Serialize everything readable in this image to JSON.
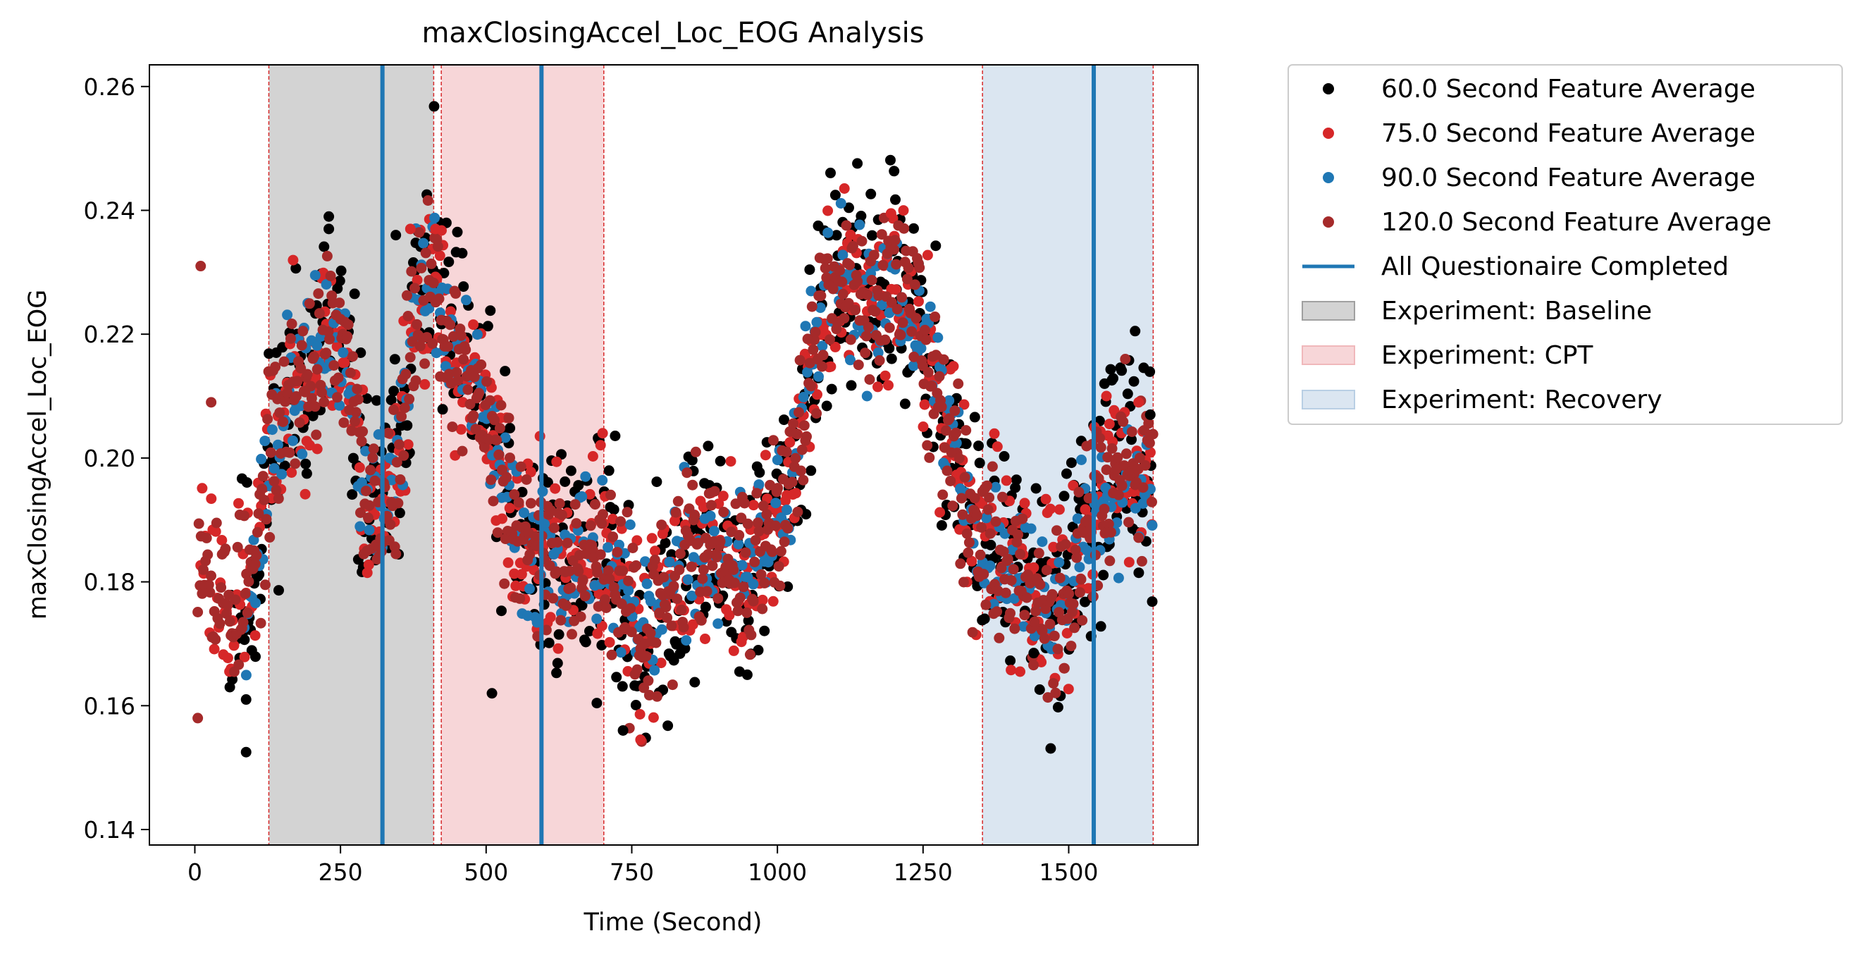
{
  "chart_data": {
    "type": "scatter",
    "title": "maxClosingAccel_Loc_EOG Analysis",
    "xlabel": "Time (Second)",
    "ylabel": "maxClosingAccel_Loc_EOG",
    "xlim": [
      -78,
      1722
    ],
    "ylim": [
      0.1375,
      0.2635
    ],
    "xticks": [
      0,
      250,
      500,
      750,
      1000,
      1250,
      1500
    ],
    "yticks": [
      0.14,
      0.16,
      0.18,
      0.2,
      0.22,
      0.24,
      0.26
    ],
    "xtick_labels": [
      "0",
      "250",
      "500",
      "750",
      "1000",
      "1250",
      "1500"
    ],
    "ytick_labels": [
      "0.14",
      "0.16",
      "0.18",
      "0.20",
      "0.22",
      "0.24",
      "0.26"
    ],
    "grid": false,
    "legend_position": "outside-top-right",
    "trend_knots": {
      "x": [
        0,
        60,
        100,
        130,
        160,
        200,
        230,
        260,
        290,
        320,
        345,
        380,
        410,
        430,
        460,
        500,
        530,
        560,
        600,
        650,
        700,
        740,
        770,
        800,
        850,
        880,
        920,
        950,
        1000,
        1030,
        1060,
        1090,
        1120,
        1150,
        1180,
        1200,
        1230,
        1260,
        1300,
        1330,
        1360,
        1400,
        1440,
        1480,
        1500,
        1530,
        1560,
        1600,
        1640
      ],
      "y": [
        0.19,
        0.175,
        0.18,
        0.2,
        0.21,
        0.215,
        0.22,
        0.215,
        0.195,
        0.19,
        0.2,
        0.225,
        0.23,
        0.22,
        0.215,
        0.205,
        0.195,
        0.185,
        0.185,
        0.185,
        0.185,
        0.175,
        0.17,
        0.175,
        0.185,
        0.185,
        0.183,
        0.18,
        0.19,
        0.2,
        0.215,
        0.225,
        0.228,
        0.225,
        0.228,
        0.23,
        0.225,
        0.215,
        0.205,
        0.19,
        0.185,
        0.183,
        0.178,
        0.175,
        0.18,
        0.19,
        0.195,
        0.198,
        0.198
      ]
    },
    "series": [
      {
        "name": "60.0 Second Feature Average",
        "color": "#000000",
        "x_start": 60,
        "x_end": 1645,
        "step": 2.1,
        "noise": 0.0095,
        "seed": 11
      },
      {
        "name": "75.0 Second Feature Average",
        "color": "#d62728",
        "x_start": 10,
        "x_end": 1645,
        "step": 2.6,
        "noise": 0.0075,
        "seed": 23
      },
      {
        "name": "90.0 Second Feature Average",
        "color": "#1f77b4",
        "x_start": 85,
        "x_end": 1645,
        "step": 3.2,
        "noise": 0.006,
        "seed": 37
      },
      {
        "name": "120.0 Second Feature Average",
        "color": "#a52a2a",
        "x_start": 5,
        "x_end": 1645,
        "step": 1.9,
        "noise": 0.0065,
        "seed": 53
      }
    ],
    "questionnaire_lines": {
      "name": "All Questionaire Completed",
      "color": "#1f77b4",
      "x": [
        322,
        595,
        1543
      ]
    },
    "phases": [
      {
        "name": "Experiment: Baseline",
        "start": 127,
        "end": 410,
        "fill": "#d3d3d3",
        "edge": "#a0a0a0"
      },
      {
        "name": "Experiment: CPT",
        "start": 423,
        "end": 702,
        "fill": "#f7d6d8",
        "edge": "#f0b8bb"
      },
      {
        "name": "Experiment: Recovery",
        "start": 1352,
        "end": 1645,
        "fill": "#dbe6f1",
        "edge": "#b9cfe4"
      }
    ],
    "boundary_line_color": "#d62728",
    "special_points": [
      {
        "x": 10,
        "y": 0.231,
        "color": "#a52a2a"
      },
      {
        "x": 5,
        "y": 0.158,
        "color": "#a52a2a"
      },
      {
        "x": 28,
        "y": 0.209,
        "color": "#a52a2a"
      },
      {
        "x": 88,
        "y": 0.1525,
        "color": "#000000"
      },
      {
        "x": 88,
        "y": 0.161,
        "color": "#000000"
      },
      {
        "x": 230,
        "y": 0.239,
        "color": "#000000"
      },
      {
        "x": 230,
        "y": 0.237,
        "color": "#000000"
      },
      {
        "x": 345,
        "y": 0.236,
        "color": "#000000"
      },
      {
        "x": 370,
        "y": 0.237,
        "color": "#d62728"
      },
      {
        "x": 413,
        "y": 0.237,
        "color": "#d62728"
      },
      {
        "x": 510,
        "y": 0.162,
        "color": "#000000"
      },
      {
        "x": 700,
        "y": 0.204,
        "color": "#d62728"
      },
      {
        "x": 765,
        "y": 0.1545,
        "color": "#d62728"
      },
      {
        "x": 735,
        "y": 0.156,
        "color": "#000000"
      },
      {
        "x": 935,
        "y": 0.1655,
        "color": "#000000"
      },
      {
        "x": 1070,
        "y": 0.2375,
        "color": "#000000"
      },
      {
        "x": 1195,
        "y": 0.2395,
        "color": "#d62728"
      },
      {
        "x": 1440,
        "y": 0.1685,
        "color": "#000000"
      },
      {
        "x": 1640,
        "y": 0.207,
        "color": "#000000"
      },
      {
        "x": 1620,
        "y": 0.209,
        "color": "#d62728"
      }
    ]
  }
}
